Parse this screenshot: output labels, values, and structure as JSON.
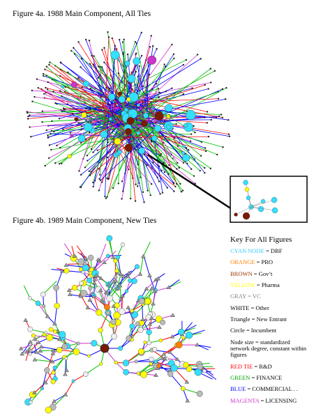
{
  "figures": [
    {
      "caption": "Figure 4a. 1988 Main Component, All Ties"
    },
    {
      "caption": "Figure 4b. 1989 Main Component, New Ties"
    }
  ],
  "key": {
    "title": "Key For All Figures",
    "items": [
      {
        "label": "CYAN NODE",
        "color": "#33ccff",
        "text": "= DBF"
      },
      {
        "label": "ORANGE",
        "color": "#ff8000",
        "text": "= PRO"
      },
      {
        "label": "BROWN",
        "color": "#993300",
        "text": "= Gov’t"
      },
      {
        "label": "YELLOW",
        "color": "#ffff00",
        "text": "= Pharma"
      },
      {
        "label": "GRAY = VC",
        "color": "#808080"
      },
      {
        "text": "WHITE = Other"
      },
      {
        "text": "Triangle = New Entrant"
      },
      {
        "text": "Circle = Incumbent"
      },
      {
        "text": "Node size = standardized network degree, constant within figures"
      },
      {
        "label": "RED TIE",
        "color": "#ff0000",
        "text": "= R&D"
      },
      {
        "label": "GREEN",
        "color": "#00a000",
        "text": "= FINANCE"
      },
      {
        "label": "BLUE",
        "color": "#0000ff",
        "text": "= COMMERCIAL  . ."
      },
      {
        "label": "MAGENTA",
        "color": "#cc33cc",
        "text": "= LICENSING"
      }
    ]
  }
}
